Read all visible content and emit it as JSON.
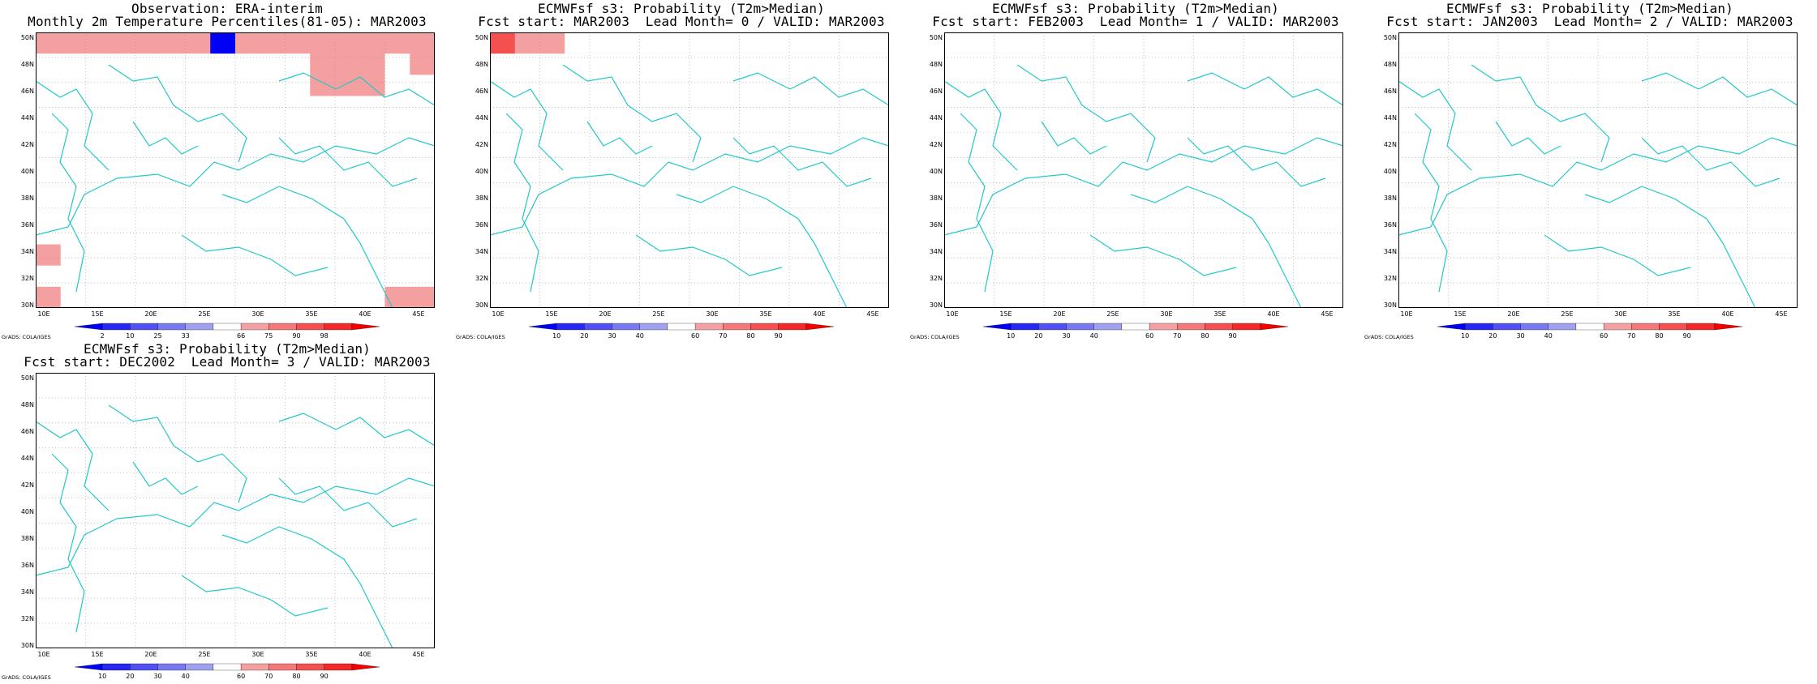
{
  "colors": {
    "blue_levels": [
      "#0000f5",
      "#2828f5",
      "#5050f5",
      "#7878f0",
      "#a0a0f0"
    ],
    "white": "#ffffff",
    "red_levels": [
      "#f5a0a0",
      "#f57878",
      "#f55050",
      "#f52828",
      "#f50000"
    ],
    "coast": "#22c8c8",
    "grid": "#9a9a9a"
  },
  "lat_labels": [
    "30N",
    "32N",
    "34N",
    "36N",
    "38N",
    "40N",
    "42N",
    "44N",
    "46N",
    "48N",
    "50N"
  ],
  "lon_labels": [
    "10E",
    "15E",
    "20E",
    "25E",
    "30E",
    "35E",
    "40E",
    "45E"
  ],
  "credit": "GrADS: COLA/IGES",
  "panels": [
    {
      "title1": "Observation: ERA-interim",
      "title2": "Monthly 2m Temperature Percentiles(81-05): MAR2003",
      "cbar_labels": [
        "2",
        "10",
        "25",
        "33",
        "66",
        "75",
        "90",
        "98"
      ],
      "grid": [
        "6666666066666666",
        "5555555555566656",
        "5555555555566655",
        "5555555555555555",
        "5555555555555555",
        "5555555555555555",
        "5555555555555555",
        "5555555555555555",
        "5555555555555555",
        "5555555555555555",
        "6555555555555555",
        "5555555555555555",
        "6555555555555566"
      ]
    },
    {
      "title1": "ECMWFsf s3: Probability (T2m>Median)",
      "title2": "Fcst start: MAR2003  Lead Month= 0 / VALID: MAR2003",
      "cbar_labels": [
        "10",
        "20",
        "30",
        "40",
        "60",
        "70",
        "80",
        "90"
      ],
      "grid": [
        "8665555555555555",
        "5555555555555555",
        "5555555555555555",
        "5555555555555555",
        "5555555555555555",
        "5555555555555555",
        "5555555555555555",
        "5555555555555555",
        "5555555555555555",
        "5555555555555555",
        "5555555555555555",
        "5555555555555555",
        "5555555555555555"
      ]
    },
    {
      "title1": "ECMWFsf s3: Probability (T2m>Median)",
      "title2": "Fcst start: FEB2003  Lead Month= 1 / VALID: MAR2003",
      "cbar_labels": [
        "10",
        "20",
        "30",
        "40",
        "60",
        "70",
        "80",
        "90"
      ],
      "grid": [
        "5555555555555555",
        "5555555555555555",
        "5555555555555555",
        "5555555555555555",
        "5555555555555555",
        "5555555555555555",
        "5555555555555555",
        "5555555555555555",
        "5555555555555555",
        "5555555555555555",
        "5555555555555555",
        "5555555555555555",
        "5555555555555555"
      ]
    },
    {
      "title1": "ECMWFsf s3: Probability (T2m>Median)",
      "title2": "Fcst start: JAN2003  Lead Month= 2 / VALID: MAR2003",
      "cbar_labels": [
        "10",
        "20",
        "30",
        "40",
        "60",
        "70",
        "80",
        "90"
      ],
      "grid": [
        "5555555555555555",
        "5555555555555555",
        "5555555555555555",
        "5555555555555555",
        "5555555555555555",
        "5555555555555555",
        "5555555555555555",
        "5555555555555555",
        "5555555555555555",
        "5555555555555555",
        "5555555555555555",
        "5555555555555555",
        "5555555555555555"
      ]
    },
    {
      "title1": "ECMWFsf s3: Probability (T2m>Median)",
      "title2": "Fcst start: DEC2002  Lead Month= 3 / VALID: MAR2003",
      "cbar_labels": [
        "10",
        "20",
        "30",
        "40",
        "60",
        "70",
        "80",
        "90"
      ],
      "grid": [
        "5555555555555555",
        "5555555555555555",
        "5555555555555555",
        "5555555555555555",
        "5555555555555555",
        "5555555555555555",
        "5555555555555555",
        "5555555555555555",
        "5555555555555555",
        "5555555555555555",
        "5555555555555555",
        "5555555555555555",
        "5555555555555555"
      ]
    }
  ]
}
